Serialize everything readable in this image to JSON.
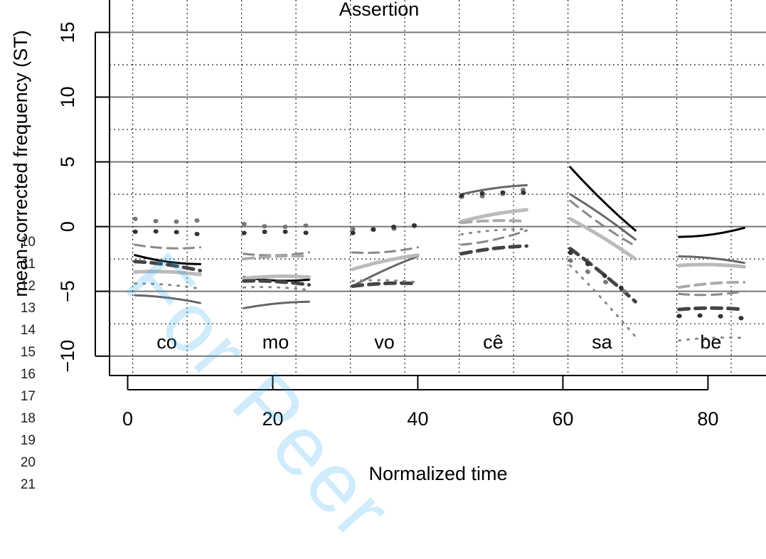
{
  "line_numbers": [
    "10",
    "11",
    "12",
    "13",
    "14",
    "15",
    "16",
    "17",
    "18",
    "19",
    "20",
    "21"
  ],
  "watermark": "For Peer",
  "chart_data": {
    "type": "line",
    "title": "Assertion",
    "xlabel": "Normalized time",
    "ylabel": "mean-corrected frequency (ST)",
    "xlim": [
      -2.5,
      88
    ],
    "ylim": [
      -11.5,
      17.5
    ],
    "x_ticks": [
      0,
      20,
      40,
      60,
      80
    ],
    "y_ticks": [
      -10,
      -5,
      0,
      5,
      10,
      15
    ],
    "grid": true,
    "syllables": [
      {
        "label": "co",
        "x": 5
      },
      {
        "label": "mo",
        "x": 20
      },
      {
        "label": "vo",
        "x": 35
      },
      {
        "label": "cê",
        "x": 50
      },
      {
        "label": "sa",
        "x": 65
      },
      {
        "label": "be",
        "x": 80
      }
    ],
    "series": [
      {
        "color": "#000000",
        "style": "solid",
        "width": 3,
        "x": [
          1,
          10,
          16,
          25,
          61,
          63.5,
          67,
          70,
          76,
          85
        ],
        "segments": [
          [
            1,
            -2.2,
            10,
            -2.9
          ],
          [
            16,
            -3.9,
            25,
            -4.1
          ],
          [
            61,
            4.6,
            70,
            -0.3
          ],
          [
            76,
            -0.8,
            85,
            -0.1
          ]
        ]
      },
      {
        "color": "#666666",
        "style": "solid",
        "width": 3,
        "segments": [
          [
            1,
            -5.3,
            10,
            -5.9
          ],
          [
            16,
            -6.3,
            25,
            -5.8
          ],
          [
            31,
            -4.6,
            40,
            -2.3
          ],
          [
            46,
            2.5,
            55,
            3.2
          ],
          [
            61,
            2.5,
            70,
            -1.0
          ],
          [
            76,
            -2.3,
            85,
            -2.8
          ]
        ]
      },
      {
        "color": "#bbbbbb",
        "style": "solid",
        "width": 5,
        "segments": [
          [
            1,
            -3.5,
            10,
            -3.7
          ],
          [
            16,
            -4.0,
            25,
            -3.9
          ],
          [
            31,
            -3.3,
            40,
            -2.2
          ],
          [
            46,
            0.4,
            55,
            1.3
          ],
          [
            61,
            0.6,
            70,
            -2.5
          ],
          [
            76,
            -3.0,
            85,
            -3.1
          ]
        ]
      },
      {
        "color": "#888888",
        "style": "dashed",
        "width": 3,
        "segments": [
          [
            1,
            -1.4,
            10,
            -1.6
          ],
          [
            16,
            -2.1,
            25,
            -2.0
          ],
          [
            31,
            -2.0,
            40,
            -1.6
          ],
          [
            46,
            -1.4,
            55,
            -0.3
          ],
          [
            61,
            2.0,
            70,
            -1.5
          ],
          [
            76,
            -5.2,
            85,
            -5.0
          ]
        ]
      },
      {
        "color": "#aaaaaa",
        "style": "dashed",
        "width": 4,
        "segments": [
          [
            16,
            -2.5,
            25,
            -2.3
          ],
          [
            46,
            0.3,
            55,
            0.4
          ],
          [
            76,
            -4.7,
            85,
            -4.3
          ]
        ]
      },
      {
        "color": "#444444",
        "style": "dashed",
        "width": 5,
        "segments": [
          [
            1,
            -2.7,
            10,
            -3.4
          ],
          [
            16,
            -4.2,
            25,
            -4.5
          ],
          [
            31,
            -4.6,
            40,
            -4.4
          ],
          [
            46,
            -2.1,
            55,
            -1.5
          ],
          [
            61,
            -1.7,
            70,
            -5.8
          ],
          [
            76,
            -6.4,
            85,
            -6.4
          ]
        ]
      },
      {
        "color": "#777777",
        "style": "dotted-big",
        "width": 6,
        "segments": [
          [
            1,
            0.6,
            10,
            0.5
          ],
          [
            16,
            0.2,
            25,
            0.1
          ],
          [
            31,
            -0.2,
            40,
            0.1
          ],
          [
            46,
            2.3,
            55,
            2.9
          ],
          [
            61,
            -2.6,
            70,
            -5.4
          ]
        ]
      },
      {
        "color": "#333333",
        "style": "dotted-big",
        "width": 6,
        "segments": [
          [
            1,
            -0.4,
            10,
            -0.6
          ],
          [
            16,
            -0.5,
            25,
            -0.5
          ],
          [
            31,
            -0.5,
            40,
            0.1
          ],
          [
            46,
            2.4,
            55,
            2.6
          ],
          [
            61,
            -2.0,
            70,
            -5.6
          ],
          [
            76,
            -6.9,
            85,
            -7.1
          ]
        ]
      },
      {
        "color": "#888888",
        "style": "dotted",
        "width": 3,
        "segments": [
          [
            1,
            -4.4,
            10,
            -4.8
          ],
          [
            16,
            -4.7,
            25,
            -4.9
          ],
          [
            31,
            -4.2,
            40,
            -4.3
          ],
          [
            46,
            -0.6,
            55,
            -0.2
          ],
          [
            61,
            -3.0,
            70,
            -8.5
          ],
          [
            76,
            -8.8,
            85,
            -8.6
          ]
        ]
      }
    ]
  }
}
